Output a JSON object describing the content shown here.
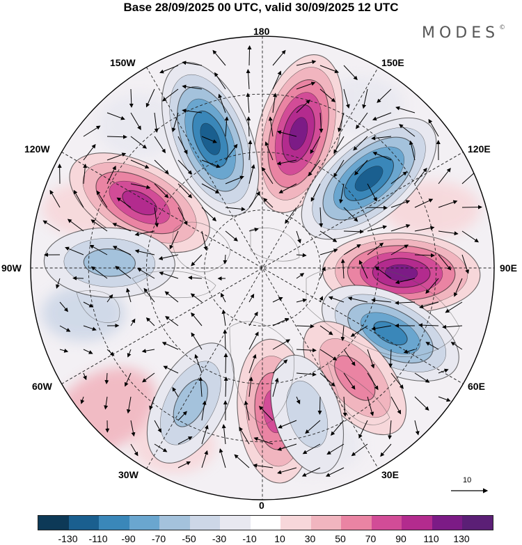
{
  "title": "Base 28/09/2025 00 UTC, valid 30/09/2025 12 UTC",
  "logo": {
    "text": "MODES",
    "mark": "©"
  },
  "longitude_labels": [
    "180",
    "150E",
    "120E",
    "90E",
    "60E",
    "30E",
    "0",
    "30W",
    "60W",
    "90W",
    "120W",
    "150W"
  ],
  "reference_vector": {
    "value": "10"
  },
  "colorbar": {
    "colors": [
      "#0d3957",
      "#1a5f8f",
      "#3a87b9",
      "#6aa6cf",
      "#a4c2dc",
      "#cdd7e7",
      "#e8e8f0",
      "#ffffff",
      "#f7d7da",
      "#f1b5bf",
      "#ea84a3",
      "#d24c97",
      "#b32b8e",
      "#7c1b86",
      "#5b1f76"
    ],
    "tick_labels": [
      "-130",
      "-110",
      "-90",
      "-70",
      "-50",
      "-30",
      "-10",
      "10",
      "30",
      "50",
      "70",
      "90",
      "110",
      "130"
    ]
  },
  "anomaly_centers": [
    {
      "lon": 165,
      "value": 120
    },
    {
      "lon": -158,
      "value": -120
    },
    {
      "lon": 130,
      "value": -120
    },
    {
      "lon": -118,
      "value": 100
    },
    {
      "lon": 88,
      "value": 110
    },
    {
      "lon": -92,
      "value": -50
    },
    {
      "lon": 63,
      "value": -90
    },
    {
      "lon": -28,
      "value": -50
    },
    {
      "lon": 5,
      "value": 80
    },
    {
      "lon": 40,
      "value": 60
    },
    {
      "lon": 17,
      "value": -30
    }
  ]
}
